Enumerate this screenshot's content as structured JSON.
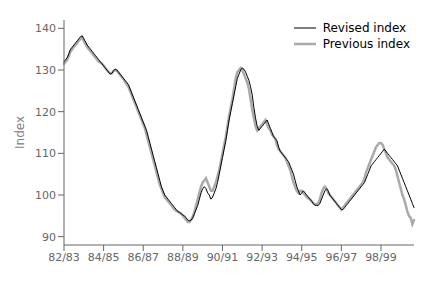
{
  "chart_data": {
    "type": "line",
    "ylabel": "Index",
    "ylim": [
      88,
      142
    ],
    "yticks": [
      90,
      100,
      110,
      120,
      130,
      140
    ],
    "grid": false,
    "legend": "upper right",
    "categories": [
      "82/83",
      null,
      null,
      null,
      null,
      null,
      null,
      null,
      null,
      null,
      null,
      null,
      null,
      null,
      null,
      null,
      null,
      null,
      null,
      null,
      null,
      null,
      null,
      null,
      "84/85",
      null,
      null,
      null,
      null,
      null,
      null,
      null,
      null,
      null,
      null,
      null,
      null,
      null,
      null,
      null,
      null,
      null,
      null,
      null,
      null,
      null,
      null,
      null,
      "86/87",
      null,
      null,
      null,
      null,
      null,
      null,
      null,
      null,
      null,
      null,
      null,
      null,
      null,
      null,
      null,
      null,
      null,
      null,
      null,
      null,
      null,
      null,
      null,
      "88/89",
      null,
      null,
      null,
      null,
      null,
      null,
      null,
      null,
      null,
      null,
      null,
      null,
      null,
      null,
      null,
      null,
      null,
      null,
      null,
      null,
      null,
      null,
      null,
      "90/91",
      null,
      null,
      null,
      null,
      null,
      null,
      null,
      null,
      null,
      null,
      null,
      null,
      null,
      null,
      null,
      null,
      null,
      null,
      null,
      null,
      null,
      null,
      null,
      "92/93",
      null,
      null,
      null,
      null,
      null,
      null,
      null,
      null,
      null,
      null,
      null,
      null,
      null,
      null,
      null,
      null,
      null,
      null,
      null,
      null,
      null,
      null,
      null,
      "94/95",
      null,
      null,
      null,
      null,
      null,
      null,
      null,
      null,
      null,
      null,
      null,
      null,
      null,
      null,
      null,
      null,
      null,
      null,
      null,
      null,
      null,
      null,
      null,
      "96/97",
      null,
      null,
      null,
      null,
      null,
      null,
      null,
      null,
      null,
      null,
      null,
      null,
      null,
      null,
      null,
      null,
      null,
      null,
      null,
      null,
      null,
      null,
      null,
      "98/99",
      null,
      null,
      null,
      null,
      null,
      null,
      null,
      null,
      null,
      null,
      null,
      null,
      null,
      null,
      null,
      null,
      null,
      null,
      null,
      null
    ],
    "series": [
      {
        "name": "Revised index",
        "color": "#000000",
        "values": [
          132,
          132.5,
          133,
          134,
          135,
          135.5,
          136,
          136.5,
          137,
          137.5,
          138,
          138.2,
          137.5,
          136.8,
          136,
          135.5,
          135,
          134.5,
          134,
          133.5,
          133,
          132.5,
          132,
          131.5,
          131,
          130.5,
          130,
          129.5,
          129,
          129.2,
          129.8,
          130.2,
          130,
          129.5,
          129,
          128.5,
          128,
          127.5,
          127,
          126.5,
          125.5,
          124.5,
          123.5,
          122.5,
          121.5,
          120.5,
          119.5,
          118.5,
          117.5,
          116.5,
          115.5,
          114,
          112.5,
          111,
          109.5,
          108,
          106.5,
          105,
          103.5,
          102,
          101,
          100,
          99.5,
          99,
          98.5,
          98,
          97.5,
          97,
          96.5,
          96,
          95.8,
          95.5,
          95.2,
          95,
          94.5,
          94,
          93.8,
          94,
          94.5,
          95.5,
          96.5,
          97.5,
          99,
          100.5,
          101.5,
          102,
          101.5,
          100.5,
          100,
          99,
          99.5,
          100.5,
          101.5,
          103,
          105,
          107,
          109,
          111,
          113,
          115.5,
          118,
          120,
          122,
          124,
          126,
          128,
          129,
          130,
          130.5,
          130.2,
          129.5,
          128.5,
          127.5,
          126,
          124,
          121,
          118.5,
          116.5,
          115.5,
          116,
          116.5,
          117,
          117.5,
          118,
          117,
          116,
          115,
          114,
          113.5,
          113,
          111.5,
          110.5,
          110,
          109.5,
          109,
          108.5,
          108,
          107,
          106,
          105,
          103.5,
          102,
          101,
          100,
          100.5,
          101,
          100.5,
          100,
          99.5,
          99,
          98.5,
          98,
          97.5,
          97.5,
          97.5,
          98,
          99,
          100,
          101,
          101.5,
          101,
          100,
          99.5,
          99,
          98.5,
          98,
          97.5,
          97,
          96.5,
          96.5,
          97,
          97.5,
          98,
          98.5,
          99,
          99.5,
          100,
          100.5,
          101,
          101.5,
          102,
          102.5,
          103,
          104,
          105,
          106,
          107,
          107.5,
          108,
          108.5,
          109,
          109.5,
          110,
          110.5,
          111,
          110.5,
          110,
          109.5,
          109,
          108.5,
          108,
          107.5,
          107,
          106,
          105,
          104,
          103,
          102,
          101,
          100,
          99,
          98,
          97
        ]
      },
      {
        "name": "Previous index",
        "color": "#aaaaaa",
        "values": [
          131.5,
          132,
          132.5,
          133.5,
          134.5,
          135,
          135.5,
          136,
          136.5,
          137,
          137.5,
          137.8,
          137,
          136.2,
          135.5,
          135,
          134.5,
          134,
          133.5,
          133,
          132.5,
          132,
          131.8,
          131.5,
          131,
          130.5,
          130,
          129.5,
          129.2,
          129.2,
          129.8,
          130,
          129.8,
          129.3,
          128.8,
          128.3,
          127.8,
          127.2,
          126.5,
          126,
          125,
          124,
          123,
          122,
          121,
          120,
          119,
          118,
          117,
          116,
          114.5,
          113,
          111.5,
          110,
          108.5,
          107,
          105.5,
          104,
          102.5,
          101.5,
          100.5,
          99.5,
          99,
          98.5,
          98,
          97.5,
          97,
          96.5,
          96.2,
          96,
          95.8,
          95.5,
          95,
          94.5,
          94,
          93.5,
          93.5,
          94,
          94.8,
          96,
          97.5,
          99,
          100.5,
          102,
          103,
          103.5,
          104,
          103,
          102,
          101,
          101,
          102,
          103,
          104.5,
          106,
          108,
          110,
          112,
          114,
          116.5,
          119,
          121,
          123,
          125.5,
          128,
          129.5,
          130,
          130.5,
          130,
          129,
          128,
          127,
          125.5,
          123,
          120.5,
          118.5,
          116.5,
          115.5,
          116,
          116.5,
          117,
          117.5,
          118,
          117,
          116,
          115.5,
          114.5,
          114,
          113.5,
          112,
          111,
          110.5,
          110,
          109.5,
          109,
          108,
          107,
          106,
          104.5,
          103,
          102,
          101,
          100.5,
          101,
          101,
          100.5,
          100,
          99.5,
          99.2,
          99,
          98.5,
          98,
          97.8,
          97.8,
          98,
          99,
          100.5,
          101.5,
          102,
          101.5,
          100.5,
          100,
          99.5,
          99,
          98.5,
          98,
          97.5,
          97,
          96.5,
          97,
          97.5,
          98,
          98.5,
          99,
          99.5,
          100,
          100.5,
          101,
          101.5,
          102,
          102.5,
          103,
          104,
          105.5,
          106.5,
          107.5,
          108.5,
          109.5,
          110.5,
          111.5,
          112,
          112.5,
          112.5,
          112,
          111,
          110,
          109,
          108.5,
          108,
          107.5,
          107,
          106,
          104.5,
          103,
          101.5,
          100,
          99,
          97.5,
          96,
          95,
          94.5,
          93,
          94
        ]
      }
    ]
  }
}
